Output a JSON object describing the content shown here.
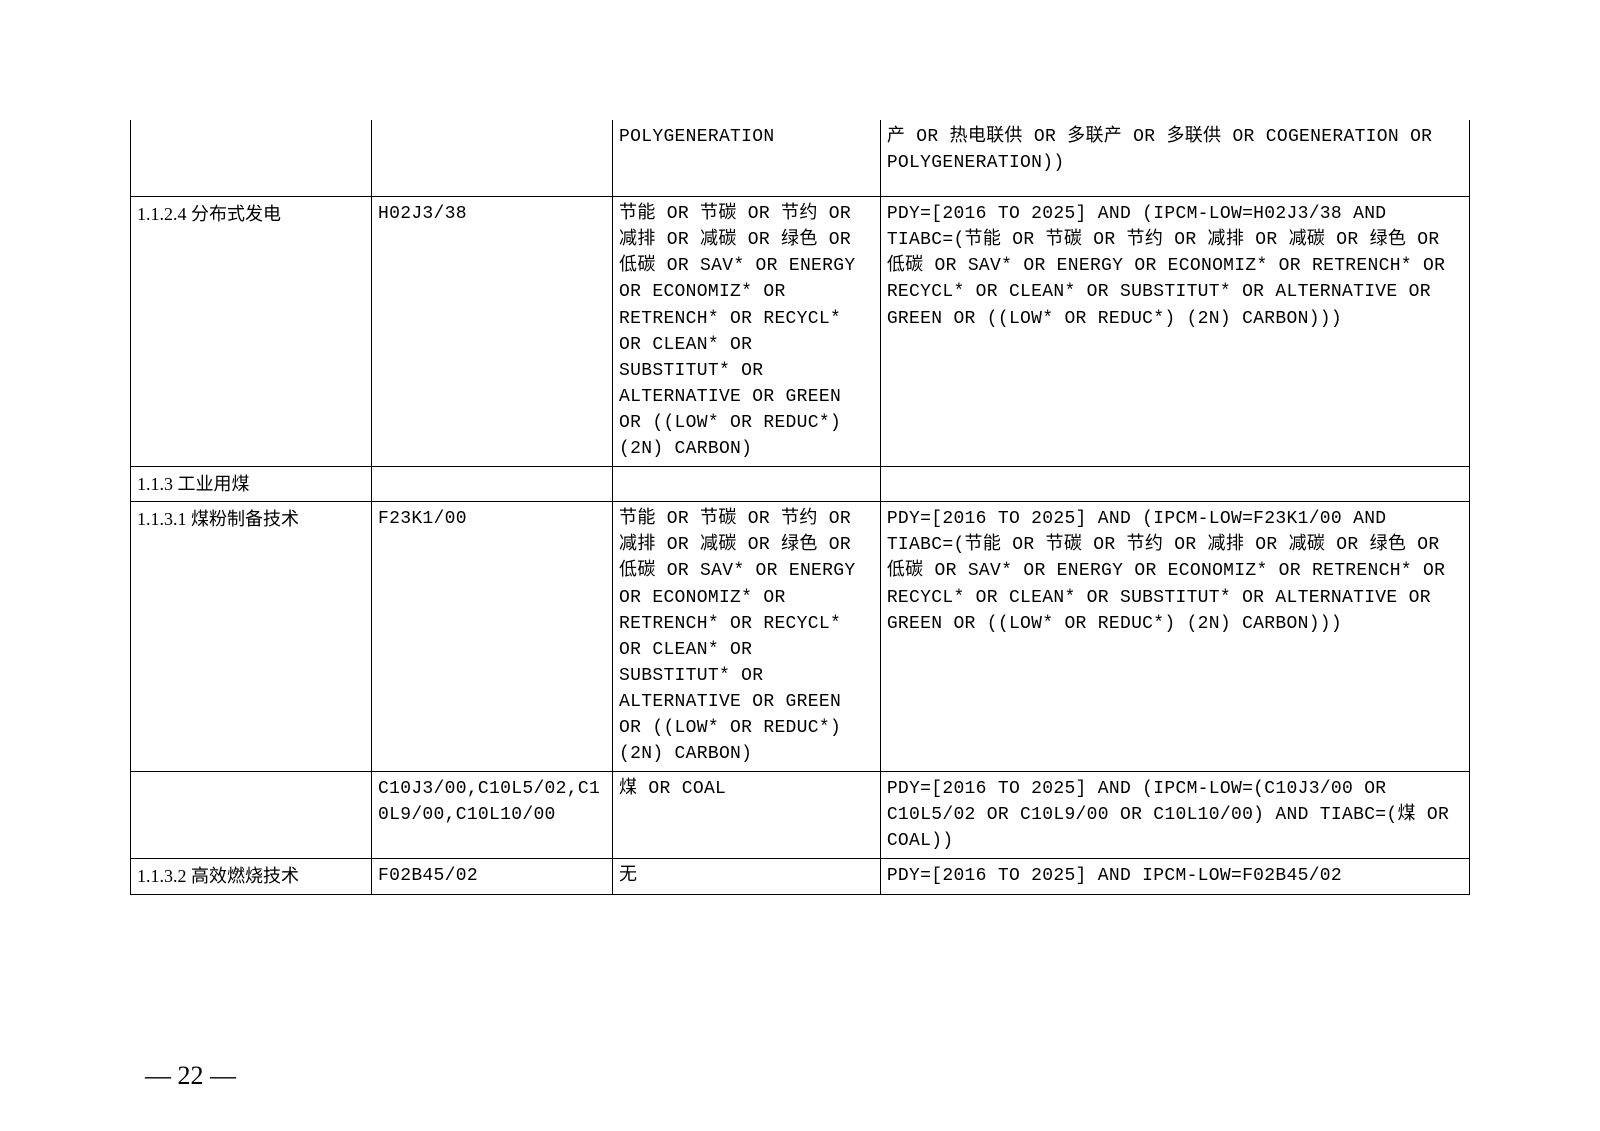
{
  "columnWidths": [
    "18%",
    "18%",
    "20%",
    "44%"
  ],
  "fontSize": 18,
  "lineHeight": 1.45,
  "borderColor": "#000000",
  "backgroundColor": "#ffffff",
  "textColor": "#000000",
  "rows": [
    {
      "isFirst": true,
      "cells": [
        "",
        "",
        "POLYGENERATION",
        "产 OR 热电联供 OR 多联产 OR 多联供 OR COGENERATION OR POLYGENERATION))"
      ],
      "tall": true
    },
    {
      "cells": [
        "1.1.2.4 分布式发电",
        "H02J3/38",
        "节能 OR 节碳 OR 节约 OR 减排 OR 减碳 OR 绿色 OR 低碳 OR SAV* OR ENERGY OR ECONOMIZ* OR RETRENCH* OR RECYCL* OR CLEAN* OR SUBSTITUT* OR ALTERNATIVE OR GREEN OR ((LOW* OR REDUC*) (2N) CARBON)",
        "PDY=[2016 TO 2025] AND (IPCM-LOW=H02J3/38 AND TIABC=(节能 OR 节碳 OR 节约 OR 减排 OR 减碳 OR 绿色 OR 低碳 OR SAV* OR ENERGY OR ECONOMIZ* OR RETRENCH* OR RECYCL* OR CLEAN* OR SUBSTITUT* OR ALTERNATIVE OR GREEN OR ((LOW* OR REDUC*) (2N) CARBON)))"
      ]
    },
    {
      "cells": [
        "1.1.3 工业用煤",
        "",
        "",
        ""
      ]
    },
    {
      "cells": [
        "1.1.3.1 煤粉制备技术",
        "F23K1/00",
        "节能 OR 节碳 OR 节约 OR 减排 OR 减碳 OR 绿色 OR 低碳 OR SAV* OR ENERGY OR ECONOMIZ* OR RETRENCH* OR RECYCL* OR CLEAN* OR SUBSTITUT* OR ALTERNATIVE OR GREEN OR ((LOW* OR REDUC*) (2N) CARBON)",
        "PDY=[2016 TO 2025] AND (IPCM-LOW=F23K1/00 AND TIABC=(节能 OR 节碳 OR 节约 OR 减排 OR 减碳 OR 绿色 OR 低碳 OR SAV* OR ENERGY OR ECONOMIZ* OR RETRENCH* OR RECYCL* OR CLEAN* OR SUBSTITUT* OR ALTERNATIVE OR GREEN OR ((LOW* OR REDUC*) (2N) CARBON)))"
      ]
    },
    {
      "cells": [
        "",
        "C10J3/00,C10L5/02,C10L9/00,C10L10/00",
        "煤 OR COAL",
        "PDY=[2016 TO 2025] AND (IPCM-LOW=(C10J3/00 OR C10L5/02 OR C10L9/00 OR C10L10/00)  AND TIABC=(煤 OR COAL))"
      ]
    },
    {
      "cells": [
        "1.1.3.2 高效燃烧技术",
        "F02B45/02",
        "无",
        "PDY=[2016 TO 2025] AND IPCM-LOW=F02B45/02"
      ]
    }
  ],
  "pageNumber": "— 22 —"
}
